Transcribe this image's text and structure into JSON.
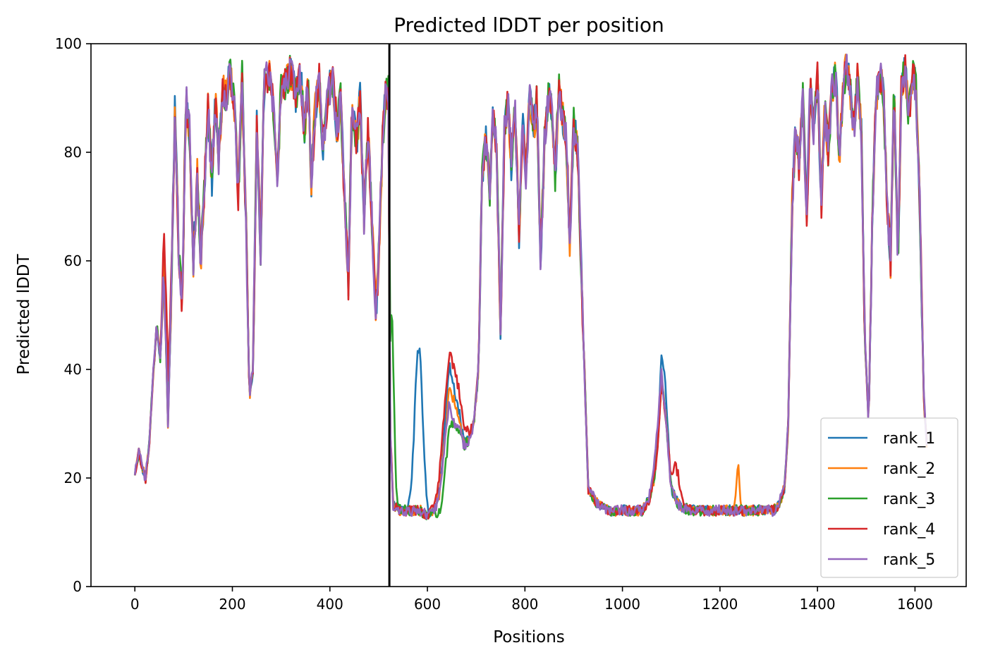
{
  "chart_data": {
    "type": "line",
    "title": "Predicted lDDT per position",
    "xlabel": "Positions",
    "ylabel": "Predicted lDDT",
    "xlim": [
      -90,
      1705
    ],
    "ylim": [
      0,
      100
    ],
    "x_ticks": [
      0,
      200,
      400,
      600,
      800,
      1000,
      1200,
      1400,
      1600
    ],
    "y_ticks": [
      0,
      20,
      40,
      60,
      80,
      100
    ],
    "grid": false,
    "legend_position": "lower-right",
    "chain_break": 522,
    "chain_break_color": "#000000",
    "x_max": 1625,
    "base_profile": [
      [
        0,
        21
      ],
      [
        8,
        25
      ],
      [
        15,
        22
      ],
      [
        22,
        20
      ],
      [
        30,
        27
      ],
      [
        38,
        40
      ],
      [
        45,
        48
      ],
      [
        52,
        42
      ],
      [
        60,
        58
      ],
      [
        68,
        30
      ],
      [
        75,
        55
      ],
      [
        82,
        88
      ],
      [
        90,
        62
      ],
      [
        97,
        52
      ],
      [
        105,
        90
      ],
      [
        112,
        84
      ],
      [
        120,
        60
      ],
      [
        128,
        76
      ],
      [
        135,
        60
      ],
      [
        142,
        72
      ],
      [
        150,
        88
      ],
      [
        158,
        75
      ],
      [
        165,
        90
      ],
      [
        172,
        78
      ],
      [
        180,
        92
      ],
      [
        188,
        90
      ],
      [
        195,
        95
      ],
      [
        205,
        88
      ],
      [
        212,
        72
      ],
      [
        220,
        94
      ],
      [
        228,
        66
      ],
      [
        235,
        35
      ],
      [
        242,
        40
      ],
      [
        250,
        85
      ],
      [
        258,
        62
      ],
      [
        265,
        92
      ],
      [
        275,
        95
      ],
      [
        285,
        88
      ],
      [
        292,
        75
      ],
      [
        300,
        92
      ],
      [
        310,
        93
      ],
      [
        320,
        95
      ],
      [
        330,
        90
      ],
      [
        340,
        94
      ],
      [
        348,
        84
      ],
      [
        355,
        93
      ],
      [
        362,
        75
      ],
      [
        370,
        88
      ],
      [
        378,
        94
      ],
      [
        385,
        80
      ],
      [
        395,
        90
      ],
      [
        405,
        94
      ],
      [
        415,
        84
      ],
      [
        422,
        90
      ],
      [
        430,
        72
      ],
      [
        438,
        56
      ],
      [
        445,
        88
      ],
      [
        455,
        82
      ],
      [
        462,
        90
      ],
      [
        470,
        68
      ],
      [
        478,
        84
      ],
      [
        486,
        68
      ],
      [
        494,
        50
      ],
      [
        500,
        60
      ],
      [
        508,
        82
      ],
      [
        515,
        92
      ],
      [
        521,
        88
      ],
      [
        523,
        30
      ],
      [
        530,
        15
      ],
      [
        545,
        14
      ],
      [
        565,
        14
      ],
      [
        585,
        14
      ],
      [
        600,
        13
      ],
      [
        615,
        14
      ],
      [
        625,
        17
      ],
      [
        635,
        26
      ],
      [
        645,
        34
      ],
      [
        655,
        30
      ],
      [
        665,
        29
      ],
      [
        675,
        26
      ],
      [
        685,
        27
      ],
      [
        695,
        30
      ],
      [
        705,
        40
      ],
      [
        712,
        76
      ],
      [
        720,
        82
      ],
      [
        728,
        72
      ],
      [
        735,
        88
      ],
      [
        742,
        80
      ],
      [
        750,
        46
      ],
      [
        758,
        84
      ],
      [
        765,
        90
      ],
      [
        772,
        78
      ],
      [
        780,
        88
      ],
      [
        788,
        64
      ],
      [
        795,
        86
      ],
      [
        802,
        76
      ],
      [
        810,
        90
      ],
      [
        818,
        84
      ],
      [
        825,
        90
      ],
      [
        832,
        60
      ],
      [
        840,
        82
      ],
      [
        848,
        90
      ],
      [
        855,
        88
      ],
      [
        862,
        76
      ],
      [
        870,
        92
      ],
      [
        878,
        86
      ],
      [
        885,
        82
      ],
      [
        892,
        64
      ],
      [
        900,
        86
      ],
      [
        908,
        80
      ],
      [
        915,
        60
      ],
      [
        922,
        40
      ],
      [
        930,
        18
      ],
      [
        950,
        15
      ],
      [
        970,
        14
      ],
      [
        985,
        14
      ],
      [
        1000,
        14
      ],
      [
        1020,
        14
      ],
      [
        1040,
        14
      ],
      [
        1055,
        16
      ],
      [
        1065,
        20
      ],
      [
        1072,
        26
      ],
      [
        1080,
        38
      ],
      [
        1090,
        30
      ],
      [
        1100,
        18
      ],
      [
        1115,
        15
      ],
      [
        1140,
        14
      ],
      [
        1170,
        14
      ],
      [
        1200,
        14
      ],
      [
        1230,
        14
      ],
      [
        1260,
        14
      ],
      [
        1290,
        14
      ],
      [
        1310,
        14
      ],
      [
        1320,
        15
      ],
      [
        1332,
        18
      ],
      [
        1340,
        30
      ],
      [
        1348,
        70
      ],
      [
        1355,
        84
      ],
      [
        1362,
        78
      ],
      [
        1370,
        90
      ],
      [
        1378,
        68
      ],
      [
        1385,
        92
      ],
      [
        1392,
        84
      ],
      [
        1400,
        94
      ],
      [
        1408,
        70
      ],
      [
        1415,
        88
      ],
      [
        1422,
        80
      ],
      [
        1430,
        92
      ],
      [
        1438,
        94
      ],
      [
        1445,
        78
      ],
      [
        1452,
        92
      ],
      [
        1460,
        96
      ],
      [
        1467,
        92
      ],
      [
        1475,
        84
      ],
      [
        1482,
        94
      ],
      [
        1490,
        84
      ],
      [
        1497,
        46
      ],
      [
        1505,
        30
      ],
      [
        1512,
        66
      ],
      [
        1520,
        90
      ],
      [
        1527,
        94
      ],
      [
        1535,
        92
      ],
      [
        1542,
        72
      ],
      [
        1550,
        60
      ],
      [
        1557,
        92
      ],
      [
        1565,
        60
      ],
      [
        1572,
        92
      ],
      [
        1580,
        96
      ],
      [
        1587,
        86
      ],
      [
        1595,
        95
      ],
      [
        1602,
        92
      ],
      [
        1610,
        70
      ],
      [
        1618,
        35
      ],
      [
        1625,
        25
      ]
    ],
    "series": [
      {
        "name": "rank_1",
        "color": "#1f77b4",
        "seed": 11,
        "bumps": [
          [
            582,
            30,
            8
          ],
          [
            650,
            7,
            12
          ],
          [
            1085,
            6,
            6
          ]
        ]
      },
      {
        "name": "rank_2",
        "color": "#ff7f0e",
        "seed": 23,
        "bumps": [
          [
            1237,
            9,
            3
          ],
          [
            655,
            4,
            10
          ]
        ]
      },
      {
        "name": "rank_3",
        "color": "#2ca02c",
        "seed": 37,
        "bumps": [
          [
            528,
            30,
            4
          ],
          [
            635,
            -6,
            10
          ]
        ]
      },
      {
        "name": "rank_4",
        "color": "#d62728",
        "seed": 53,
        "bumps": [
          [
            65,
            10,
            6
          ],
          [
            650,
            10,
            18
          ],
          [
            1110,
            6,
            8
          ]
        ]
      },
      {
        "name": "rank_5",
        "color": "#9467bd",
        "seed": 71,
        "bumps": [
          [
            1070,
            3,
            8
          ]
        ]
      }
    ]
  }
}
